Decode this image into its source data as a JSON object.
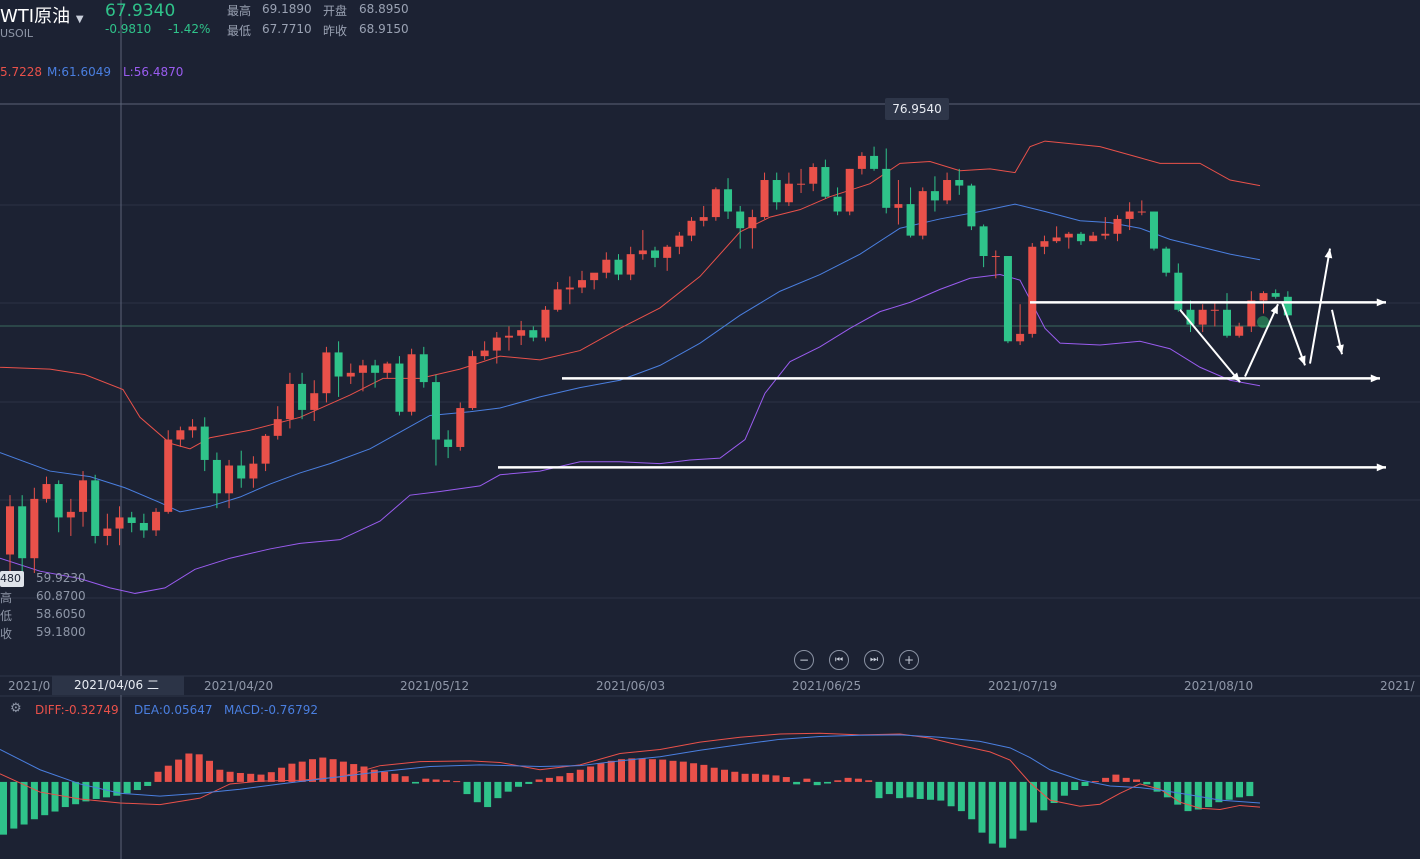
{
  "instrument": {
    "name": "WTI原油",
    "code": "USOIL",
    "price": "67.9340",
    "change": "-0.9810",
    "change_pct": "-1.42%",
    "high_label": "最高",
    "high": "69.1890",
    "open_label": "开盘",
    "open": "68.8950",
    "low_label": "最低",
    "low": "67.7710",
    "prev_label": "昨收",
    "prev_close": "68.9150"
  },
  "boll": {
    "u": "5.7228",
    "m": "M:61.6049",
    "l": "L:56.4870"
  },
  "peak_label": "76.9540",
  "crosshair_side": {
    "box": "480",
    "rows": [
      "59.9230",
      "60.8700",
      "58.6050",
      "59.1800"
    ],
    "prefix": [
      "",
      "高",
      "低",
      "收"
    ]
  },
  "dates": [
    "2021/0",
    "2021/04/20",
    "2021/05/12",
    "2021/06/03",
    "2021/06/25",
    "2021/07/19",
    "2021/08/10",
    "2021/"
  ],
  "crosshair_date": "2021/04/06 二",
  "macd": {
    "diff": "DIFF:-0.32749",
    "dea": "DEA:0.05647",
    "macd": "MACD:-0.76792"
  },
  "controls": {
    "zoom_out": "−",
    "first": "⏮",
    "last": "⏭",
    "zoom_in": "+"
  },
  "colors": {
    "up": "#e9514a",
    "down": "#2fc38a",
    "upper": "#e9514a",
    "mid": "#4a7fe0",
    "lower": "#9a5cf0",
    "bg": "#1c2233"
  },
  "chart_data": {
    "type": "candlestick",
    "ylim": [
      48.5,
      79.3
    ],
    "candles": [
      [
        55.0,
        58.2,
        53.5,
        57.6
      ],
      [
        57.6,
        58.2,
        53.4,
        54.8
      ],
      [
        54.8,
        58.6,
        54.0,
        58.0
      ],
      [
        58.0,
        59.2,
        57.8,
        58.8
      ],
      [
        58.8,
        59.0,
        56.2,
        57.0
      ],
      [
        57.0,
        58.0,
        56.0,
        57.3
      ],
      [
        57.3,
        59.5,
        56.5,
        59.0
      ],
      [
        59.0,
        59.3,
        55.6,
        56.0
      ],
      [
        56.0,
        57.2,
        55.5,
        56.4
      ],
      [
        56.4,
        57.6,
        55.5,
        57.0
      ],
      [
        57.0,
        57.3,
        56.2,
        56.7
      ],
      [
        56.7,
        57.2,
        55.9,
        56.3
      ],
      [
        56.3,
        57.5,
        56.0,
        57.3
      ],
      [
        57.3,
        61.7,
        57.2,
        61.2
      ],
      [
        61.2,
        61.9,
        60.8,
        61.7
      ],
      [
        61.7,
        62.3,
        61.3,
        61.9
      ],
      [
        61.9,
        62.4,
        59.5,
        60.1
      ],
      [
        60.1,
        60.5,
        57.5,
        58.3
      ],
      [
        58.3,
        60.1,
        57.5,
        59.8
      ],
      [
        59.8,
        60.6,
        58.6,
        59.1
      ],
      [
        59.1,
        60.3,
        58.6,
        59.9
      ],
      [
        59.9,
        61.5,
        59.5,
        61.4
      ],
      [
        61.4,
        63.0,
        61.2,
        62.3
      ],
      [
        62.3,
        64.8,
        61.8,
        64.2
      ],
      [
        64.2,
        64.8,
        62.3,
        62.8
      ],
      [
        62.8,
        64.4,
        62.2,
        63.7
      ],
      [
        63.7,
        66.2,
        63.2,
        65.9
      ],
      [
        65.9,
        66.5,
        63.5,
        64.6
      ],
      [
        64.6,
        65.3,
        64.2,
        64.8
      ],
      [
        64.8,
        65.5,
        63.8,
        65.2
      ],
      [
        65.2,
        65.5,
        64.0,
        64.8
      ],
      [
        64.8,
        65.4,
        64.5,
        65.3
      ],
      [
        65.3,
        65.7,
        62.5,
        62.7
      ],
      [
        62.7,
        66.1,
        62.5,
        65.8
      ],
      [
        65.8,
        66.2,
        64.0,
        64.3
      ],
      [
        64.3,
        64.7,
        59.8,
        61.2
      ],
      [
        61.2,
        61.7,
        60.2,
        60.8
      ],
      [
        60.8,
        63.2,
        60.6,
        62.9
      ],
      [
        62.9,
        66.0,
        62.8,
        65.7
      ],
      [
        65.7,
        66.5,
        65.5,
        66.0
      ],
      [
        66.0,
        67.0,
        65.3,
        66.7
      ],
      [
        66.7,
        67.3,
        66.0,
        66.8
      ],
      [
        66.8,
        67.6,
        66.3,
        67.1
      ],
      [
        67.1,
        67.3,
        66.5,
        66.7
      ],
      [
        66.7,
        68.4,
        66.5,
        68.2
      ],
      [
        68.2,
        69.7,
        68.1,
        69.3
      ],
      [
        69.3,
        70.0,
        68.5,
        69.4
      ],
      [
        69.4,
        70.3,
        69.1,
        69.8
      ],
      [
        69.8,
        70.1,
        69.3,
        70.2
      ],
      [
        70.2,
        71.3,
        69.9,
        70.9
      ],
      [
        70.9,
        71.2,
        69.8,
        70.1
      ],
      [
        70.1,
        71.6,
        69.8,
        71.2
      ],
      [
        71.2,
        72.5,
        70.9,
        71.4
      ],
      [
        71.4,
        71.6,
        70.5,
        71.0
      ],
      [
        71.0,
        71.7,
        70.3,
        71.6
      ],
      [
        71.6,
        72.4,
        71.2,
        72.2
      ],
      [
        72.2,
        73.2,
        71.9,
        73.0
      ],
      [
        73.0,
        73.8,
        72.7,
        73.2
      ],
      [
        73.2,
        74.8,
        73.0,
        74.7
      ],
      [
        74.7,
        75.3,
        73.1,
        73.5
      ],
      [
        73.5,
        73.8,
        71.5,
        72.6
      ],
      [
        72.6,
        73.6,
        71.5,
        73.2
      ],
      [
        73.2,
        75.6,
        73.1,
        75.2
      ],
      [
        75.2,
        75.6,
        73.6,
        74.0
      ],
      [
        74.0,
        75.6,
        73.8,
        75.0
      ],
      [
        75.0,
        75.8,
        74.5,
        75.0
      ],
      [
        75.0,
        76.1,
        74.6,
        75.9
      ],
      [
        75.9,
        76.3,
        74.2,
        74.3
      ],
      [
        74.3,
        74.8,
        73.3,
        73.5
      ],
      [
        73.5,
        75.8,
        73.3,
        75.8
      ],
      [
        75.8,
        76.7,
        75.5,
        76.5
      ],
      [
        76.5,
        77.0,
        75.7,
        75.8
      ],
      [
        75.8,
        76.9,
        73.4,
        73.7
      ],
      [
        73.7,
        75.2,
        72.8,
        73.9
      ],
      [
        73.9,
        74.8,
        72.1,
        72.2
      ],
      [
        72.2,
        74.8,
        72.0,
        74.6
      ],
      [
        74.6,
        75.4,
        73.5,
        74.1
      ],
      [
        74.1,
        75.6,
        73.9,
        75.2
      ],
      [
        75.2,
        75.8,
        74.4,
        74.9
      ],
      [
        74.9,
        75.0,
        72.5,
        72.7
      ],
      [
        72.7,
        72.8,
        70.5,
        71.1
      ],
      [
        71.1,
        71.4,
        69.9,
        71.1
      ],
      [
        71.1,
        71.1,
        66.4,
        66.5
      ],
      [
        66.5,
        68.5,
        66.3,
        66.9
      ],
      [
        66.9,
        71.8,
        66.7,
        71.6
      ],
      [
        71.6,
        72.2,
        71.2,
        71.9
      ],
      [
        71.9,
        72.7,
        71.8,
        72.1
      ],
      [
        72.1,
        72.4,
        71.5,
        72.3
      ],
      [
        72.3,
        72.4,
        71.7,
        71.9
      ],
      [
        71.9,
        72.4,
        71.9,
        72.2
      ],
      [
        72.2,
        73.2,
        72.0,
        72.3
      ],
      [
        72.3,
        73.3,
        71.9,
        73.1
      ],
      [
        73.1,
        74.0,
        72.5,
        73.5
      ],
      [
        73.5,
        74.1,
        73.3,
        73.5
      ],
      [
        73.5,
        73.5,
        71.4,
        71.5
      ],
      [
        71.5,
        71.6,
        70.0,
        70.2
      ],
      [
        70.2,
        70.7,
        68.1,
        68.2
      ],
      [
        68.2,
        68.7,
        67.0,
        67.4
      ],
      [
        67.4,
        68.5,
        67.0,
        68.2
      ],
      [
        68.2,
        68.6,
        67.3,
        68.2
      ],
      [
        68.2,
        69.1,
        66.7,
        66.8
      ],
      [
        66.8,
        67.5,
        66.7,
        67.3
      ],
      [
        67.3,
        69.2,
        67.0,
        68.7
      ],
      [
        68.7,
        69.2,
        68.0,
        69.1
      ],
      [
        69.1,
        69.3,
        68.8,
        68.9
      ],
      [
        68.9,
        69.2,
        67.8,
        67.9
      ]
    ],
    "upper_band": [
      [
        -40,
        65.5
      ],
      [
        0,
        65.1
      ],
      [
        50,
        65.0
      ],
      [
        85,
        64.7
      ],
      [
        123,
        63.9
      ],
      [
        140,
        62.4
      ],
      [
        170,
        61.0
      ],
      [
        190,
        60.7
      ],
      [
        210,
        61.3
      ],
      [
        250,
        61.7
      ],
      [
        300,
        62.4
      ],
      [
        350,
        63.6
      ],
      [
        383,
        64.5
      ],
      [
        420,
        64.5
      ],
      [
        460,
        65.0
      ],
      [
        500,
        65.7
      ],
      [
        540,
        65.5
      ],
      [
        580,
        66.0
      ],
      [
        620,
        67.2
      ],
      [
        660,
        68.3
      ],
      [
        700,
        70.0
      ],
      [
        740,
        72.4
      ],
      [
        770,
        73.2
      ],
      [
        800,
        73.6
      ],
      [
        830,
        74.3
      ],
      [
        870,
        75.0
      ],
      [
        900,
        76.1
      ],
      [
        930,
        76.2
      ],
      [
        960,
        75.7
      ],
      [
        990,
        75.8
      ],
      [
        1015,
        75.6
      ],
      [
        1030,
        77.0
      ],
      [
        1045,
        77.3
      ],
      [
        1100,
        77.0
      ],
      [
        1140,
        76.4
      ],
      [
        1160,
        76.1
      ],
      [
        1200,
        76.1
      ],
      [
        1230,
        75.2
      ],
      [
        1260,
        74.9
      ]
    ],
    "middle_band": [
      [
        0,
        60.5
      ],
      [
        50,
        59.5
      ],
      [
        90,
        59.2
      ],
      [
        125,
        58.6
      ],
      [
        160,
        57.8
      ],
      [
        180,
        57.3
      ],
      [
        210,
        57.6
      ],
      [
        240,
        58.1
      ],
      [
        270,
        58.8
      ],
      [
        300,
        59.4
      ],
      [
        330,
        59.9
      ],
      [
        370,
        60.7
      ],
      [
        400,
        61.6
      ],
      [
        430,
        62.5
      ],
      [
        470,
        62.7
      ],
      [
        500,
        62.9
      ],
      [
        540,
        63.5
      ],
      [
        580,
        64.0
      ],
      [
        620,
        64.4
      ],
      [
        660,
        65.2
      ],
      [
        700,
        66.4
      ],
      [
        740,
        67.9
      ],
      [
        780,
        69.2
      ],
      [
        820,
        70.1
      ],
      [
        860,
        71.2
      ],
      [
        900,
        72.6
      ],
      [
        940,
        73.1
      ],
      [
        980,
        73.5
      ],
      [
        1015,
        73.9
      ],
      [
        1045,
        73.5
      ],
      [
        1080,
        73.0
      ],
      [
        1110,
        72.9
      ],
      [
        1140,
        72.6
      ],
      [
        1170,
        72.0
      ],
      [
        1200,
        71.6
      ],
      [
        1230,
        71.2
      ],
      [
        1260,
        70.9
      ]
    ],
    "lower_band": [
      [
        0,
        54.8
      ],
      [
        40,
        54.1
      ],
      [
        80,
        53.7
      ],
      [
        110,
        53.2
      ],
      [
        135,
        52.9
      ],
      [
        165,
        53.2
      ],
      [
        195,
        54.2
      ],
      [
        230,
        54.8
      ],
      [
        270,
        55.3
      ],
      [
        300,
        55.6
      ],
      [
        340,
        55.8
      ],
      [
        380,
        56.8
      ],
      [
        410,
        58.2
      ],
      [
        440,
        58.4
      ],
      [
        480,
        58.7
      ],
      [
        500,
        59.3
      ],
      [
        540,
        59.5
      ],
      [
        580,
        60.0
      ],
      [
        620,
        60.0
      ],
      [
        660,
        59.9
      ],
      [
        690,
        60.1
      ],
      [
        720,
        60.2
      ],
      [
        745,
        61.2
      ],
      [
        765,
        63.7
      ],
      [
        790,
        65.4
      ],
      [
        820,
        66.2
      ],
      [
        850,
        67.2
      ],
      [
        880,
        68.1
      ],
      [
        910,
        68.6
      ],
      [
        940,
        69.3
      ],
      [
        970,
        69.9
      ],
      [
        1000,
        70.1
      ],
      [
        1020,
        69.8
      ],
      [
        1045,
        67.2
      ],
      [
        1060,
        66.4
      ],
      [
        1100,
        66.3
      ],
      [
        1140,
        66.5
      ],
      [
        1170,
        66.1
      ],
      [
        1200,
        65.1
      ],
      [
        1230,
        64.4
      ],
      [
        1260,
        64.1
      ]
    ],
    "macd_hist": [
      -1.3,
      -1.15,
      -1.05,
      -0.92,
      -0.82,
      -0.73,
      -0.62,
      -0.55,
      -0.48,
      -0.42,
      -0.38,
      -0.34,
      -0.28,
      -0.2,
      -0.1,
      0.25,
      0.4,
      0.55,
      0.7,
      0.68,
      0.52,
      0.3,
      0.25,
      0.22,
      0.2,
      0.18,
      0.24,
      0.35,
      0.45,
      0.5,
      0.56,
      0.6,
      0.56,
      0.5,
      0.44,
      0.38,
      0.3,
      0.25,
      0.2,
      0.14,
      -0.04,
      0.08,
      0.06,
      0.04,
      0.02,
      -0.3,
      -0.5,
      -0.62,
      -0.4,
      -0.24,
      -0.12,
      -0.05,
      0.06,
      0.1,
      0.14,
      0.22,
      0.3,
      0.38,
      0.46,
      0.52,
      0.56,
      0.58,
      0.58,
      0.56,
      0.55,
      0.52,
      0.5,
      0.46,
      0.42,
      0.35,
      0.3,
      0.25,
      0.2,
      0.2,
      0.18,
      0.16,
      0.12,
      -0.06,
      0.08,
      -0.08,
      -0.04,
      0.04,
      0.1,
      0.08,
      0.04,
      -0.4,
      -0.3,
      -0.4,
      -0.38,
      -0.42,
      -0.44,
      -0.46,
      -0.6,
      -0.72,
      -0.92,
      -1.25,
      -1.52,
      -1.62,
      -1.4,
      -1.2,
      -1.0,
      -0.7,
      -0.52,
      -0.34,
      -0.2,
      -0.1,
      0.02,
      0.1,
      0.18,
      0.1,
      0.06,
      -0.06,
      -0.24,
      -0.38,
      -0.56,
      -0.72,
      -0.68,
      -0.62,
      -0.5,
      -0.44,
      -0.38,
      -0.35
    ],
    "diff_line": [
      [
        0,
        0.2
      ],
      [
        40,
        -0.25
      ],
      [
        80,
        -0.42
      ],
      [
        120,
        -0.52
      ],
      [
        160,
        -0.56
      ],
      [
        200,
        -0.4
      ],
      [
        230,
        -0.05
      ],
      [
        260,
        0.02
      ],
      [
        300,
        0.04
      ],
      [
        340,
        0.12
      ],
      [
        380,
        0.4
      ],
      [
        420,
        0.5
      ],
      [
        470,
        0.52
      ],
      [
        500,
        0.48
      ],
      [
        540,
        0.3
      ],
      [
        580,
        0.42
      ],
      [
        620,
        0.7
      ],
      [
        660,
        0.8
      ],
      [
        700,
        0.98
      ],
      [
        740,
        1.1
      ],
      [
        780,
        1.18
      ],
      [
        820,
        1.2
      ],
      [
        860,
        1.16
      ],
      [
        900,
        1.18
      ],
      [
        930,
        1.08
      ],
      [
        960,
        0.9
      ],
      [
        990,
        0.74
      ],
      [
        1010,
        0.54
      ],
      [
        1030,
        -0.02
      ],
      [
        1050,
        -0.45
      ],
      [
        1080,
        -0.6
      ],
      [
        1100,
        -0.55
      ],
      [
        1120,
        -0.28
      ],
      [
        1140,
        -0.05
      ],
      [
        1160,
        -0.18
      ],
      [
        1180,
        -0.5
      ],
      [
        1200,
        -0.65
      ],
      [
        1220,
        -0.68
      ],
      [
        1240,
        -0.58
      ],
      [
        1260,
        -0.62
      ]
    ],
    "dea_line": [
      [
        0,
        0.8
      ],
      [
        40,
        0.3
      ],
      [
        80,
        -0.05
      ],
      [
        120,
        -0.28
      ],
      [
        160,
        -0.35
      ],
      [
        200,
        -0.28
      ],
      [
        240,
        -0.18
      ],
      [
        280,
        -0.05
      ],
      [
        330,
        0.1
      ],
      [
        380,
        0.25
      ],
      [
        430,
        0.38
      ],
      [
        480,
        0.42
      ],
      [
        540,
        0.38
      ],
      [
        580,
        0.4
      ],
      [
        620,
        0.52
      ],
      [
        660,
        0.62
      ],
      [
        700,
        0.78
      ],
      [
        740,
        0.92
      ],
      [
        780,
        1.05
      ],
      [
        820,
        1.12
      ],
      [
        860,
        1.15
      ],
      [
        900,
        1.16
      ],
      [
        940,
        1.1
      ],
      [
        980,
        1.0
      ],
      [
        1010,
        0.84
      ],
      [
        1030,
        0.6
      ],
      [
        1050,
        0.3
      ],
      [
        1080,
        0.05
      ],
      [
        1110,
        -0.1
      ],
      [
        1140,
        -0.14
      ],
      [
        1160,
        -0.2
      ],
      [
        1190,
        -0.32
      ],
      [
        1220,
        -0.45
      ],
      [
        1260,
        -0.52
      ]
    ],
    "macd_ylim": [
      -1.9,
      1.6
    ],
    "levels": [
      {
        "from": 562,
        "to": 1380,
        "y": 64.5
      },
      {
        "from": 498,
        "to": 1386,
        "y": 59.7
      },
      {
        "from": 1030,
        "to": 1386,
        "y": 68.6
      }
    ],
    "arrows": [
      [
        [
          1180,
          68.2
        ],
        [
          1240,
          64.3
        ]
      ],
      [
        [
          1245,
          64.6
        ],
        [
          1278,
          68.5
        ]
      ],
      [
        [
          1282,
          68.6
        ],
        [
          1305,
          65.2
        ]
      ],
      [
        [
          1310,
          65.3
        ],
        [
          1330,
          71.5
        ]
      ],
      [
        [
          1332,
          68.2
        ],
        [
          1342,
          65.8
        ]
      ]
    ]
  }
}
